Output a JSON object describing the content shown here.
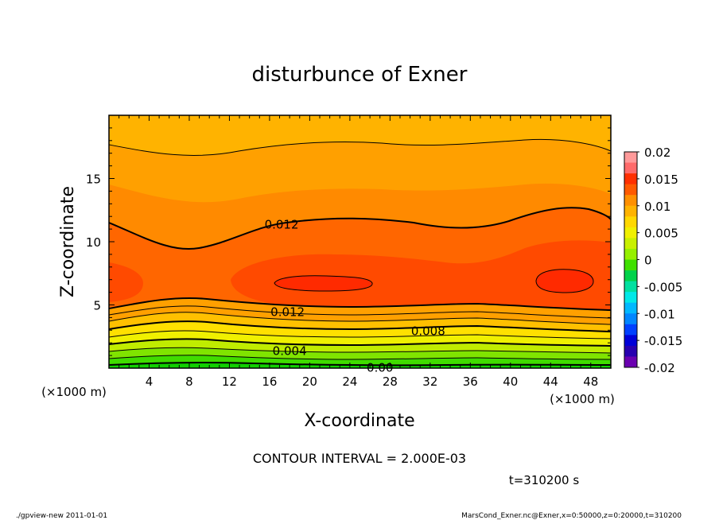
{
  "chart_data": {
    "type": "contour",
    "title": "disturbunce of Exner",
    "xlabel": "X-coordinate",
    "ylabel": "Z-coordinate",
    "x_unit_left": "(×1000 m)",
    "x_unit_right": "(×1000 m)",
    "xlim": [
      0,
      50
    ],
    "ylim": [
      0,
      20
    ],
    "x_ticks": [
      "4",
      "8",
      "12",
      "16",
      "20",
      "24",
      "28",
      "32",
      "36",
      "40",
      "44",
      "48"
    ],
    "y_ticks": [
      "5",
      "10",
      "15"
    ],
    "contour_interval_text": "CONTOUR INTERVAL = 2.000E-03",
    "time_text": "t=310200 s",
    "contour_labels": [
      {
        "text": "0.012",
        "x": 17.2,
        "z": 11.4
      },
      {
        "text": "0.012",
        "x": 17.8,
        "z": 4.5
      },
      {
        "text": "0.008",
        "x": 31.8,
        "z": 3.0
      },
      {
        "text": "0.004",
        "x": 18.0,
        "z": 1.4
      },
      {
        "text": "0.00",
        "x": 27.0,
        "z": 0.1
      }
    ],
    "colorbar": {
      "labels": [
        "0.02",
        "0.015",
        "0.01",
        "0.005",
        "0",
        "-0.005",
        "-0.01",
        "-0.015",
        "-0.02"
      ],
      "colors": [
        "#ff9a9a",
        "#ff6a6a",
        "#ff3000",
        "#ff5a00",
        "#ff9000",
        "#ffb300",
        "#ffd800",
        "#f0f000",
        "#c8f000",
        "#96f000",
        "#40e000",
        "#00d24a",
        "#00e0a0",
        "#00e8e8",
        "#00b8ff",
        "#0086ff",
        "#0040ff",
        "#0000d8",
        "#2800b0",
        "#6a00b0"
      ]
    },
    "field_summary": "maximum ~0.016 near z=7km, x=18-26km and x=42-48km; minimum ~0 at the bottom boundary"
  },
  "footer": {
    "left": "./gpview-new   2011-01-01",
    "right": "MarsCond_Exner.nc@Exner,x=0:50000,z=0:20000,t=310200"
  }
}
